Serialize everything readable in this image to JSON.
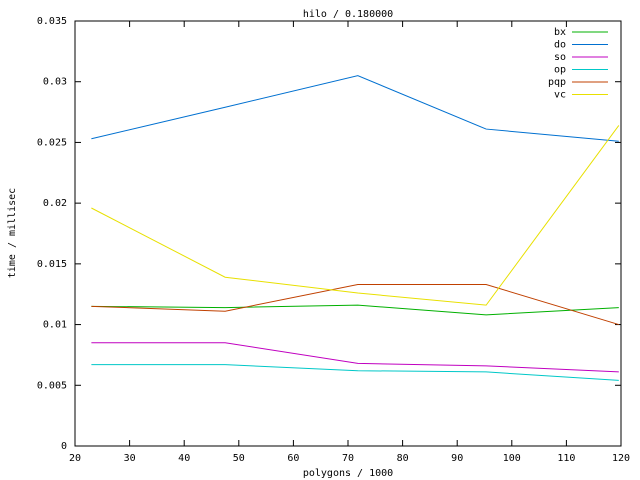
{
  "chart_data": {
    "type": "line",
    "title": "hilo / 0.180000",
    "x_label": "polygons / 1000",
    "y_label": "time / millisec",
    "x": [
      23,
      47.5,
      71.8,
      95.3,
      119.6
    ],
    "series": [
      {
        "name": "bx",
        "color": "#00b000",
        "values": [
          0.0115,
          0.0114,
          0.0116,
          0.0108,
          0.0114
        ]
      },
      {
        "name": "do",
        "color": "#0070d0",
        "values": [
          0.0253,
          0.0279,
          0.0305,
          0.0261,
          0.0251
        ]
      },
      {
        "name": "so",
        "color": "#c000c0",
        "values": [
          0.0085,
          0.0085,
          0.0068,
          0.0066,
          0.0061
        ]
      },
      {
        "name": "op",
        "color": "#00c8c8",
        "values": [
          0.0067,
          0.0067,
          0.0062,
          0.0061,
          0.0054
        ]
      },
      {
        "name": "pqp",
        "color": "#c04000",
        "values": [
          0.0115,
          0.0111,
          0.0133,
          0.0133,
          0.01
        ]
      },
      {
        "name": "vc",
        "color": "#e8e000",
        "values": [
          0.0196,
          0.0139,
          0.0126,
          0.0116,
          0.0264
        ]
      }
    ],
    "xlim": [
      20,
      120
    ],
    "xticks": [
      20,
      30,
      40,
      50,
      60,
      70,
      80,
      90,
      100,
      110,
      120
    ],
    "ylim": [
      0,
      0.035
    ],
    "yticks": [
      0,
      0.005,
      0.01,
      0.015,
      0.02,
      0.025,
      0.03,
      0.035
    ],
    "legend": "top-right"
  }
}
